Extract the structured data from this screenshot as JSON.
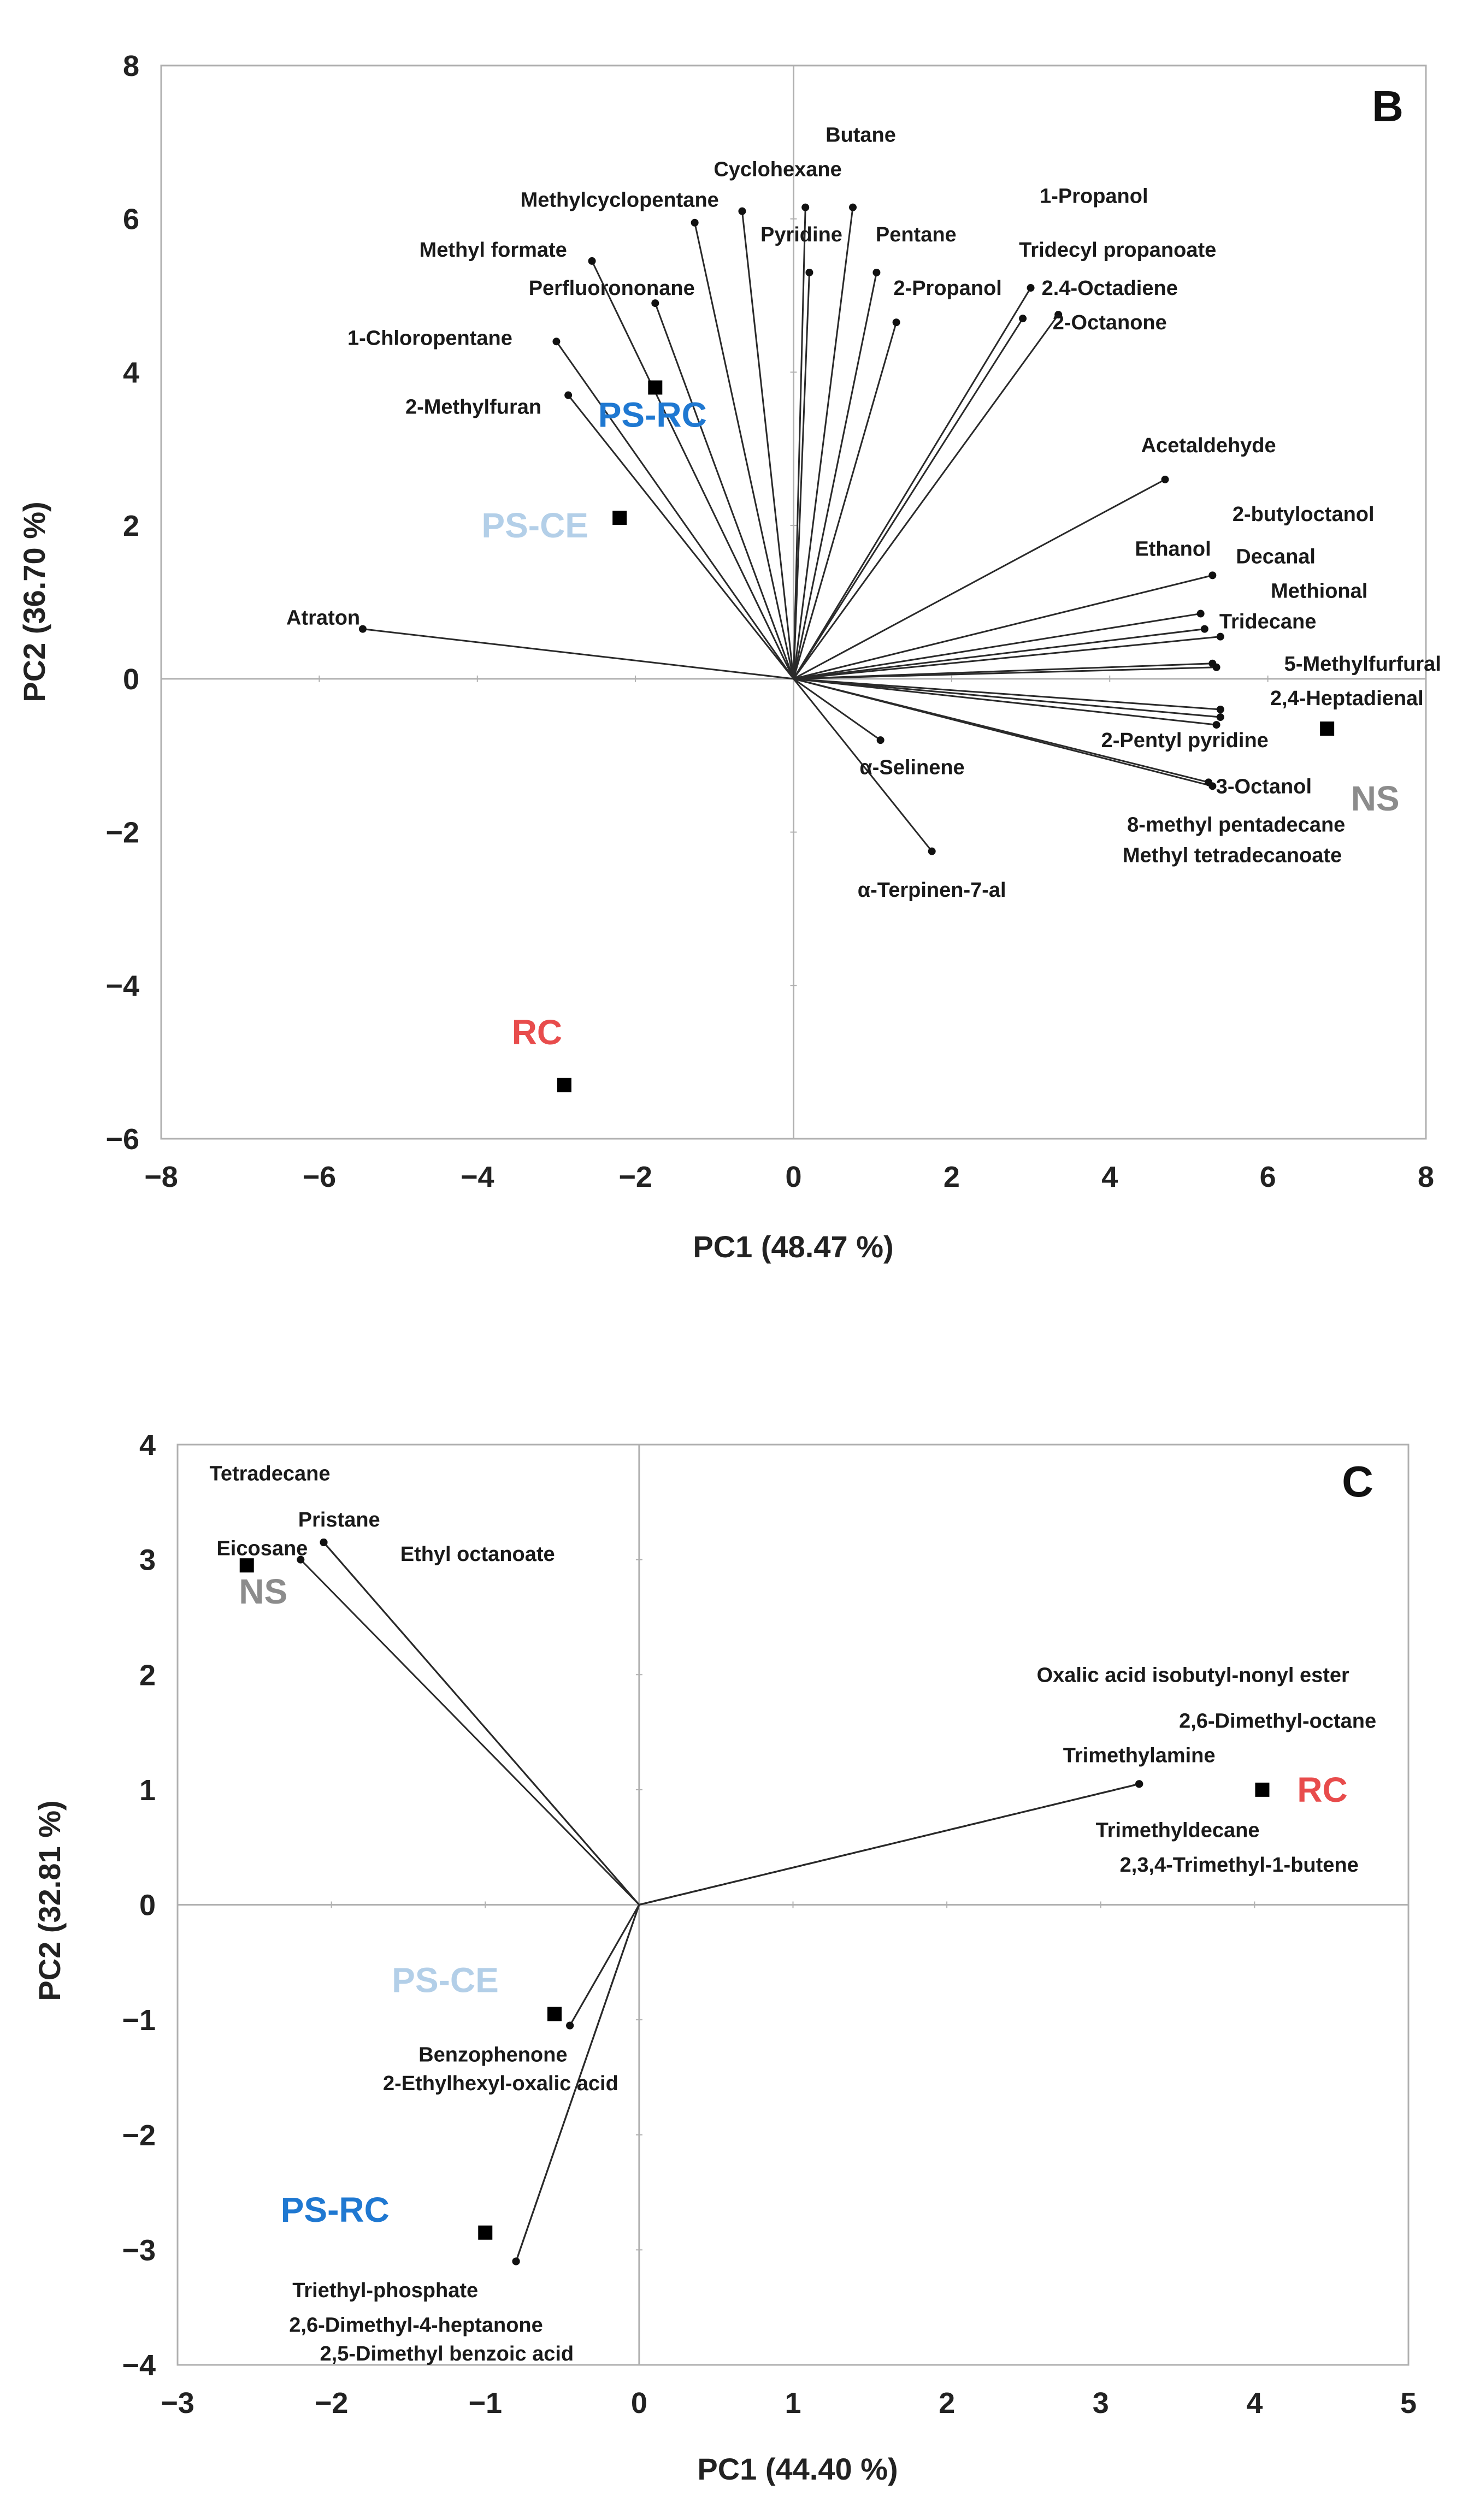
{
  "chart_data": [
    {
      "type": "scatter",
      "panel_label": "B",
      "xlabel": "PC1 (48.47 %)",
      "ylabel": "PC2 (36.70 %)",
      "xlim": [
        -8,
        8
      ],
      "ylim": [
        -6,
        8
      ],
      "xticks": [
        -8,
        -6,
        -4,
        -2,
        0,
        2,
        4,
        6,
        8
      ],
      "yticks": [
        -6,
        -4,
        -2,
        0,
        2,
        4,
        6,
        8
      ],
      "x_tick_labels": [
        "−8",
        "−6",
        "−4",
        "−2",
        "0",
        "2",
        "4",
        "6",
        "8"
      ],
      "y_tick_labels": [
        "−6",
        "−4",
        "−2",
        "0",
        "2",
        "4",
        "6",
        "8"
      ],
      "grid": false,
      "samples": [
        {
          "name": "PS-RC",
          "x": -1.75,
          "y": 3.8,
          "color": "#1f78d1"
        },
        {
          "name": "PS-CE",
          "x": -2.2,
          "y": 2.1,
          "color": "#b3cfe8"
        },
        {
          "name": "NS",
          "x": 6.75,
          "y": -0.65,
          "color": "#8c8c8c"
        },
        {
          "name": "RC",
          "x": -2.9,
          "y": -5.3,
          "color": "#e84c4c"
        }
      ],
      "loadings": [
        {
          "name": "Butane",
          "x": 0.75,
          "y": 6.15,
          "label": [
            0.85,
            7.1
          ]
        },
        {
          "name": "Cyclohexane",
          "x": -0.65,
          "y": 6.1,
          "label": [
            -0.2,
            6.65
          ]
        },
        {
          "name": "Methylcyclopentane",
          "x": -1.25,
          "y": 5.95,
          "label": [
            -2.2,
            6.25
          ]
        },
        {
          "name": "Pyridine",
          "x": 0.15,
          "y": 6.15,
          "label": [
            0.1,
            5.8
          ]
        },
        {
          "name": "Pentane",
          "x": 1.05,
          "y": 5.3,
          "label": [
            1.55,
            5.8
          ]
        },
        {
          "name": "1-Propanol",
          "x": 3.0,
          "y": 5.1,
          "label": [
            3.8,
            6.3
          ]
        },
        {
          "name": "Methyl formate",
          "x": -2.55,
          "y": 5.45,
          "label": [
            -3.8,
            5.6
          ]
        },
        {
          "name": "Perfluorononane",
          "x": -1.75,
          "y": 4.9,
          "label": [
            -2.3,
            5.1
          ]
        },
        {
          "name": "2-Propanol",
          "x": 1.3,
          "y": 4.65,
          "label": [
            1.95,
            5.1
          ]
        },
        {
          "name": "Tridecyl propanoate",
          "x": 2.9,
          "y": 4.7,
          "label": [
            4.1,
            5.6
          ]
        },
        {
          "name": "2.4-Octadiene",
          "x": 3.35,
          "y": 4.75,
          "label": [
            4.0,
            5.1
          ]
        },
        {
          "name": "2-Octanone",
          "x": 0.2,
          "y": 5.3,
          "label": [
            4.0,
            4.65
          ]
        },
        {
          "name": "1-Chloropentane",
          "x": -3.0,
          "y": 4.4,
          "label": [
            -4.6,
            4.45
          ]
        },
        {
          "name": "2-Methylfuran",
          "x": -2.85,
          "y": 3.7,
          "label": [
            -4.05,
            3.55
          ]
        },
        {
          "name": "Acetaldehyde",
          "x": 4.7,
          "y": 2.6,
          "label": [
            5.25,
            3.05
          ]
        },
        {
          "name": "2-butyloctanol",
          "x": 5.3,
          "y": 1.35,
          "label": [
            6.45,
            2.15
          ]
        },
        {
          "name": "Ethanol",
          "x": 5.15,
          "y": 0.85,
          "label": [
            4.8,
            1.7
          ]
        },
        {
          "name": "Decanal",
          "x": 5.2,
          "y": 0.65,
          "label": [
            6.1,
            1.6
          ]
        },
        {
          "name": "Methional",
          "x": 5.4,
          "y": 0.55,
          "label": [
            6.65,
            1.15
          ]
        },
        {
          "name": "Tridecane",
          "x": 5.3,
          "y": 0.2,
          "label": [
            6.0,
            0.75
          ]
        },
        {
          "name": "5-Methylfurfural",
          "x": 5.35,
          "y": 0.15,
          "label": [
            7.2,
            0.2
          ]
        },
        {
          "name": "2,4-Heptadienal",
          "x": 5.4,
          "y": -0.4,
          "label": [
            7.0,
            -0.25
          ]
        },
        {
          "name": "2-Pentyl pyridine",
          "x": 5.4,
          "y": -0.5,
          "label": [
            4.95,
            -0.8
          ]
        },
        {
          "name": "3-Octanol",
          "x": 5.3,
          "y": -1.4,
          "label": [
            5.95,
            -1.4
          ]
        },
        {
          "name": "8-methyl pentadecane",
          "x": 5.35,
          "y": -0.6,
          "label": [
            5.6,
            -1.9
          ]
        },
        {
          "name": "Methyl tetradecanoate",
          "x": 5.25,
          "y": -1.35,
          "label": [
            5.55,
            -2.3
          ]
        },
        {
          "name": "Atraton",
          "x": -5.45,
          "y": 0.65,
          "label": [
            -5.95,
            0.8
          ]
        },
        {
          "name": "α-Selinene",
          "x": 1.1,
          "y": -0.8,
          "label": [
            1.5,
            -1.15
          ]
        },
        {
          "name": "α-Terpinen-7-al",
          "x": 1.75,
          "y": -2.25,
          "label": [
            1.75,
            -2.75
          ]
        }
      ]
    },
    {
      "type": "scatter",
      "panel_label": "C",
      "xlabel": "PC1 (44.40 %)",
      "ylabel": "PC2 (32.81 %)",
      "xlim": [
        -3,
        5
      ],
      "ylim": [
        -4,
        4
      ],
      "xticks": [
        -3,
        -2,
        -1,
        0,
        1,
        2,
        3,
        4,
        5
      ],
      "yticks": [
        -4,
        -3,
        -2,
        -1,
        0,
        1,
        2,
        3,
        4
      ],
      "x_tick_labels": [
        "−3",
        "−2",
        "−1",
        "0",
        "1",
        "2",
        "3",
        "4",
        "5"
      ],
      "y_tick_labels": [
        "−4",
        "−3",
        "−2",
        "−1",
        "0",
        "1",
        "2",
        "3",
        "4"
      ],
      "grid": false,
      "samples": [
        {
          "name": "NS",
          "x": -2.55,
          "y": 2.95,
          "color": "#8c8c8c"
        },
        {
          "name": "RC",
          "x": 4.05,
          "y": 1.0,
          "color": "#e84c4c"
        },
        {
          "name": "PS-CE",
          "x": -0.55,
          "y": -0.95,
          "color": "#b3cfe8"
        },
        {
          "name": "PS-RC",
          "x": -1.0,
          "y": -2.85,
          "color": "#1f78d1"
        }
      ],
      "loadings": [
        {
          "name": "Tetradecane",
          "x": -2.05,
          "y": 3.15,
          "label": [
            -2.4,
            3.75
          ]
        },
        {
          "name": "Pristane",
          "x": -2.05,
          "y": 3.15,
          "label": [
            -1.95,
            3.35
          ]
        },
        {
          "name": "Eicosane",
          "x": -2.2,
          "y": 3.0,
          "label": [
            -2.45,
            3.1
          ]
        },
        {
          "name": "Ethyl octanoate",
          "x": -2.05,
          "y": 3.15,
          "label": [
            -1.05,
            3.05
          ]
        },
        {
          "name": "Oxalic acid isobutyl-nonyl ester",
          "x": 3.25,
          "y": 1.05,
          "label": [
            3.6,
            2.0
          ]
        },
        {
          "name": "2,6-Dimethyl-octane",
          "x": 3.25,
          "y": 1.05,
          "label": [
            4.15,
            1.6
          ]
        },
        {
          "name": "Trimethylamine",
          "x": 3.25,
          "y": 1.05,
          "label": [
            3.25,
            1.3
          ]
        },
        {
          "name": "Trimethyldecane",
          "x": 3.25,
          "y": 1.05,
          "label": [
            3.5,
            0.65
          ]
        },
        {
          "name": "2,3,4-Trimethyl-1-butene",
          "x": 3.25,
          "y": 1.05,
          "label": [
            3.9,
            0.35
          ]
        },
        {
          "name": "Benzophenone",
          "x": -0.45,
          "y": -1.05,
          "label": [
            -0.95,
            -1.3
          ]
        },
        {
          "name": "2-Ethylhexyl-oxalic acid",
          "x": -0.45,
          "y": -1.05,
          "label": [
            -0.9,
            -1.55
          ]
        },
        {
          "name": "Triethyl-phosphate",
          "x": -0.8,
          "y": -3.1,
          "label": [
            -1.65,
            -3.35
          ]
        },
        {
          "name": "2,6-Dimethyl-4-heptanone",
          "x": -0.8,
          "y": -3.1,
          "label": [
            -1.45,
            -3.65
          ]
        },
        {
          "name": "2,5-Dimethyl benzoic acid",
          "x": -0.8,
          "y": -3.1,
          "label": [
            -1.25,
            -3.9
          ]
        }
      ]
    }
  ]
}
